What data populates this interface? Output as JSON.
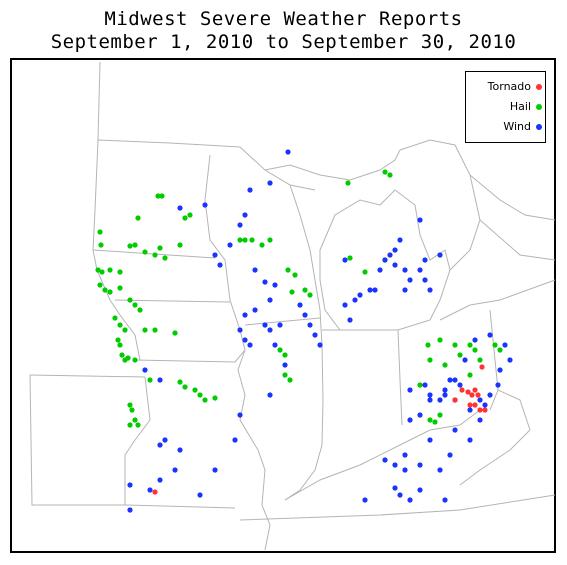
{
  "title": {
    "line1": "Midwest Severe Weather Reports",
    "line2": "September 1, 2010 to September 30, 2010"
  },
  "legend": {
    "placement": "top-right",
    "items": [
      {
        "label": "Tornado",
        "color": "#ff3333"
      },
      {
        "label": "Hail",
        "color": "#00cc00"
      },
      {
        "label": "Wind",
        "color": "#1a33ff"
      }
    ]
  },
  "colors": {
    "border": "#000000",
    "state_lines": "#b4b4b4",
    "background": "#ffffff"
  }
}
